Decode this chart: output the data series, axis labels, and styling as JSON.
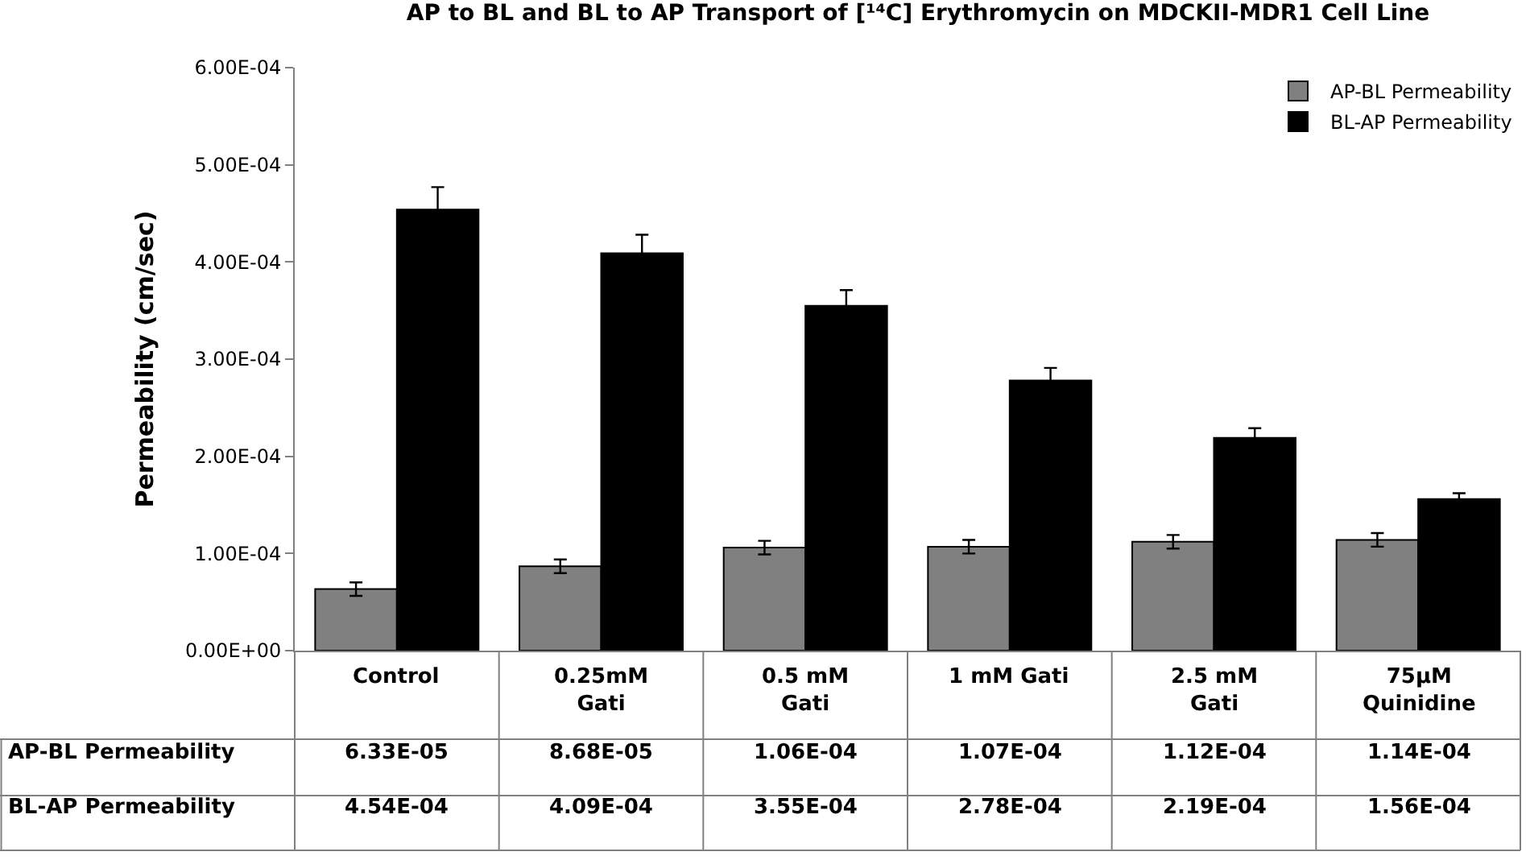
{
  "chart_data": {
    "type": "bar",
    "title": "AP to BL and BL to AP Transport of [¹⁴C] Erythromycin on MDCKII-MDR1 Cell Line",
    "ylabel": "Permeability (cm/sec)",
    "categories": [
      "Control",
      "0.25mM Gati",
      "0.5 mM Gati",
      "1 mM Gati",
      "2.5 mM Gati",
      "75µM Quinidine"
    ],
    "series": [
      {
        "name": "AP-BL Permeability",
        "color": "#808080",
        "values": [
          6.33e-05,
          8.68e-05,
          0.000106,
          0.000107,
          0.000112,
          0.000114
        ],
        "errors": [
          7e-06,
          7e-06,
          7e-06,
          7e-06,
          7e-06,
          7e-06
        ],
        "value_labels": [
          "6.33E-05",
          "8.68E-05",
          "1.06E-04",
          "1.07E-04",
          "1.12E-04",
          "1.14E-04"
        ]
      },
      {
        "name": "BL-AP Permeability",
        "color": "#000000",
        "values": [
          0.000454,
          0.000409,
          0.000355,
          0.000278,
          0.000219,
          0.000156
        ],
        "errors": [
          2.3e-05,
          1.9e-05,
          1.6e-05,
          1.3e-05,
          1e-05,
          6e-06
        ],
        "value_labels": [
          "4.54E-04",
          "4.09E-04",
          "3.55E-04",
          "2.78E-04",
          "2.19E-04",
          "1.56E-04"
        ]
      }
    ],
    "ylim": [
      0,
      0.0006
    ],
    "yticks": [
      {
        "value": 0,
        "label": "0.00E+00"
      },
      {
        "value": 0.0001,
        "label": "1.00E-04"
      },
      {
        "value": 0.0002,
        "label": "2.00E-04"
      },
      {
        "value": 0.0003,
        "label": "3.00E-04"
      },
      {
        "value": 0.0004,
        "label": "4.00E-04"
      },
      {
        "value": 0.0005,
        "label": "5.00E-04"
      },
      {
        "value": 0.0006,
        "label": "6.00E-04"
      }
    ],
    "legend": "top right"
  }
}
